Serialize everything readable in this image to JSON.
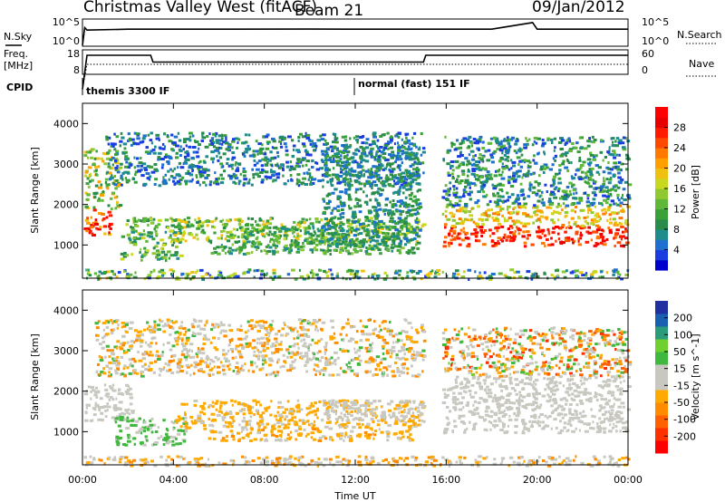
{
  "header": {
    "title": "Christmas Valley West (fitACF)",
    "beam": "Beam 21",
    "date": "09/Jan/2012"
  },
  "strip_labels": {
    "nsky": "N.Sky",
    "nsearch": "N.Search",
    "freq_line1": "Freq.",
    "freq_line2": "[MHz]",
    "nave": "Nave",
    "cpid": "CPID",
    "nsky_ticks": [
      "10^5",
      "10^0"
    ],
    "nsearch_ticks": [
      "10^5",
      "10^0"
    ],
    "freq_ticks": [
      "18",
      "8"
    ],
    "nave_ticks": [
      "60",
      "0"
    ]
  },
  "cpid_modes": [
    {
      "label": "themis 3300 IF",
      "start_hour": 0
    },
    {
      "label": "normal (fast) 151 IF",
      "start_hour": 12
    }
  ],
  "x_axis": {
    "label": "Time UT",
    "ticks": [
      "00:00",
      "04:00",
      "08:00",
      "12:00",
      "16:00",
      "20:00",
      "00:00"
    ]
  },
  "chart_data": [
    {
      "type": "line",
      "panel": "N.Sky / N.Search",
      "series": [
        {
          "x": [
            0,
            0.1,
            0.2,
            2,
            6,
            10,
            14,
            18,
            19.8,
            20,
            22,
            24
          ],
          "y": [
            1,
            3000,
            1000,
            1500,
            1500,
            1600,
            1500,
            1500,
            30000,
            1500,
            1500,
            1500
          ]
        }
      ],
      "y_scale": "log",
      "ylim": [
        1,
        100000
      ]
    },
    {
      "type": "line",
      "panel": "Freq / Nave",
      "series": [
        {
          "x": [
            0,
            0.2,
            3,
            3.1,
            15,
            15.1,
            24
          ],
          "y": [
            1,
            16,
            16,
            13,
            13,
            16,
            16
          ]
        },
        {
          "x": [
            0,
            0.2,
            24
          ],
          "y": [
            1,
            12,
            12
          ],
          "style": "dotted"
        }
      ],
      "ylim_left": [
        8,
        18
      ],
      "ylim_right": [
        0,
        60
      ]
    },
    {
      "type": "heatmap",
      "panel": "Power",
      "xlabel": "Time UT",
      "ylabel": "Slant Range [km]",
      "xlim": [
        0,
        24
      ],
      "ylim": [
        180,
        4500
      ],
      "yticks": [
        1000,
        2000,
        3000,
        4000
      ],
      "colorbar": {
        "label": "Power [dB]",
        "ticks": [
          4,
          8,
          12,
          16,
          20,
          24,
          28
        ],
        "range": [
          0,
          32
        ],
        "colors": [
          "#0000cc",
          "#1a3de0",
          "#1f6fd0",
          "#1f8c8c",
          "#2a8c4a",
          "#3aa03a",
          "#60b83a",
          "#90c830",
          "#c8d820",
          "#f0c010",
          "#ffa000",
          "#ff7800",
          "#ff4800",
          "#ff1a00",
          "#e80000",
          "#ff0000"
        ]
      },
      "regions": [
        {
          "t": [
            0.05,
            1.6
          ],
          "r": [
            1900,
            3400
          ],
          "v": [
            8,
            22
          ]
        },
        {
          "t": [
            0.05,
            1.2
          ],
          "r": [
            1250,
            1900
          ],
          "v": [
            18,
            32
          ]
        },
        {
          "t": [
            1.6,
            4.3
          ],
          "r": [
            650,
            1700
          ],
          "v": [
            6,
            18
          ]
        },
        {
          "t": [
            3.8,
            15
          ],
          "r": [
            1100,
            1700
          ],
          "v": [
            8,
            20
          ]
        },
        {
          "t": [
            5.5,
            14.5
          ],
          "r": [
            800,
            1100
          ],
          "v": [
            6,
            16
          ]
        },
        {
          "t": [
            7,
            14.7
          ],
          "r": [
            900,
            1500
          ],
          "v": [
            6,
            14
          ]
        },
        {
          "t": [
            1,
            15
          ],
          "r": [
            2500,
            3800
          ],
          "v": [
            2,
            12
          ]
        },
        {
          "t": [
            10.5,
            14.8
          ],
          "r": [
            1100,
            3500
          ],
          "v": [
            4,
            12
          ]
        },
        {
          "t": [
            15.8,
            24
          ],
          "r": [
            1000,
            1500
          ],
          "v": [
            22,
            32
          ]
        },
        {
          "t": [
            15.8,
            24
          ],
          "r": [
            1500,
            2000
          ],
          "v": [
            14,
            24
          ]
        },
        {
          "t": [
            15.8,
            24
          ],
          "r": [
            2000,
            3700
          ],
          "v": [
            2,
            14
          ]
        },
        {
          "t": [
            0,
            24
          ],
          "r": [
            180,
            420
          ],
          "v": [
            2,
            20
          ]
        }
      ]
    },
    {
      "type": "heatmap",
      "panel": "Velocity",
      "xlabel": "Time UT",
      "ylabel": "Slant Range [km]",
      "xlim": [
        0,
        24
      ],
      "ylim": [
        180,
        4500
      ],
      "yticks": [
        1000,
        2000,
        3000,
        4000
      ],
      "colorbar": {
        "label": "Velocity [m s^-1]",
        "ticks": [
          200,
          100,
          50,
          15,
          -15,
          -50,
          -100,
          -200
        ],
        "range": [
          -250,
          250
        ],
        "colors": [
          "#ff0000",
          "#ff3000",
          "#ff6000",
          "#ff8c00",
          "#ffaa00",
          "#c8c8c0",
          "#c8c8c0",
          "#40b840",
          "#70d030",
          "#2a9c7a",
          "#1a60b0",
          "#2030a0"
        ]
      },
      "regions": [
        {
          "t": [
            0.05,
            2.2
          ],
          "r": [
            1300,
            2200
          ],
          "v": [
            -14,
            14
          ]
        },
        {
          "t": [
            1.4,
            4.5
          ],
          "r": [
            700,
            1400
          ],
          "v": [
            30,
            60
          ]
        },
        {
          "t": [
            4,
            15
          ],
          "r": [
            1100,
            1800
          ],
          "v": [
            -80,
            -30
          ]
        },
        {
          "t": [
            5.5,
            14.5
          ],
          "r": [
            800,
            1100
          ],
          "v": [
            -90,
            -30
          ]
        },
        {
          "t": [
            10.5,
            15
          ],
          "r": [
            1300,
            1800
          ],
          "v": [
            -14,
            14
          ]
        },
        {
          "t": [
            15.8,
            24
          ],
          "r": [
            1000,
            2400
          ],
          "v": [
            -14,
            14
          ]
        },
        {
          "t": [
            15.8,
            24
          ],
          "r": [
            2400,
            3600
          ],
          "v": [
            -200,
            100
          ]
        },
        {
          "t": [
            0.5,
            15
          ],
          "r": [
            2400,
            3800
          ],
          "v": [
            -120,
            60
          ]
        },
        {
          "t": [
            0,
            24
          ],
          "r": [
            180,
            420
          ],
          "v": [
            -120,
            40
          ]
        }
      ]
    }
  ]
}
